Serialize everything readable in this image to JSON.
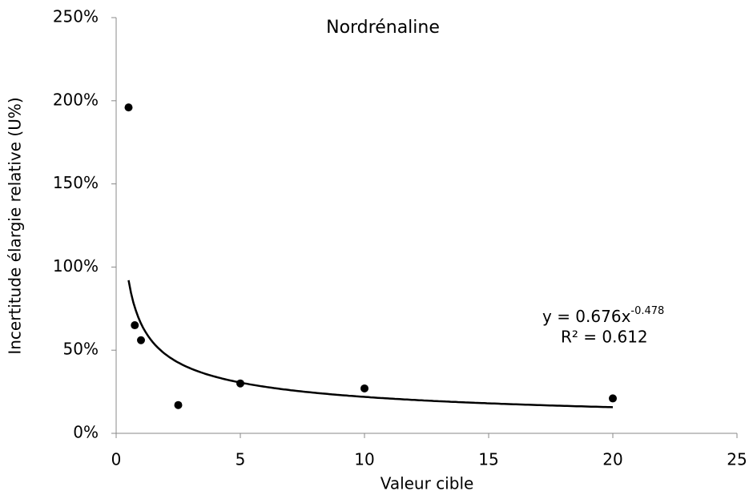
{
  "chart_data": {
    "type": "scatter",
    "title": "Nordrénaline",
    "x_label": "Valeur cible",
    "y_label": "Incertitude élargie relative (U%)",
    "series": [
      {
        "name": "Nordrénaline",
        "color": "#000000",
        "x": [
          0.5,
          0.75,
          1,
          2.5,
          5,
          10,
          20
        ],
        "values": [
          196,
          65,
          56,
          17,
          30,
          27,
          21
        ]
      }
    ],
    "trendline": {
      "type": "power",
      "color": "#000000",
      "equation": "y = 0.676x",
      "exponent": "-0.478",
      "r_squared": "R² = 0.612"
    },
    "xlim": [
      0,
      25
    ],
    "xticks": [
      0,
      5,
      10,
      15,
      20,
      25
    ],
    "ylim": [
      0,
      250
    ],
    "yticks": [
      {
        "value": 0,
        "label": "0%"
      },
      {
        "value": 50,
        "label": "50%"
      },
      {
        "value": 100,
        "label": "100%"
      },
      {
        "value": 150,
        "label": "150%"
      },
      {
        "value": 200,
        "label": "200%"
      },
      {
        "value": 250,
        "label": "250%"
      }
    ],
    "grid": false
  }
}
